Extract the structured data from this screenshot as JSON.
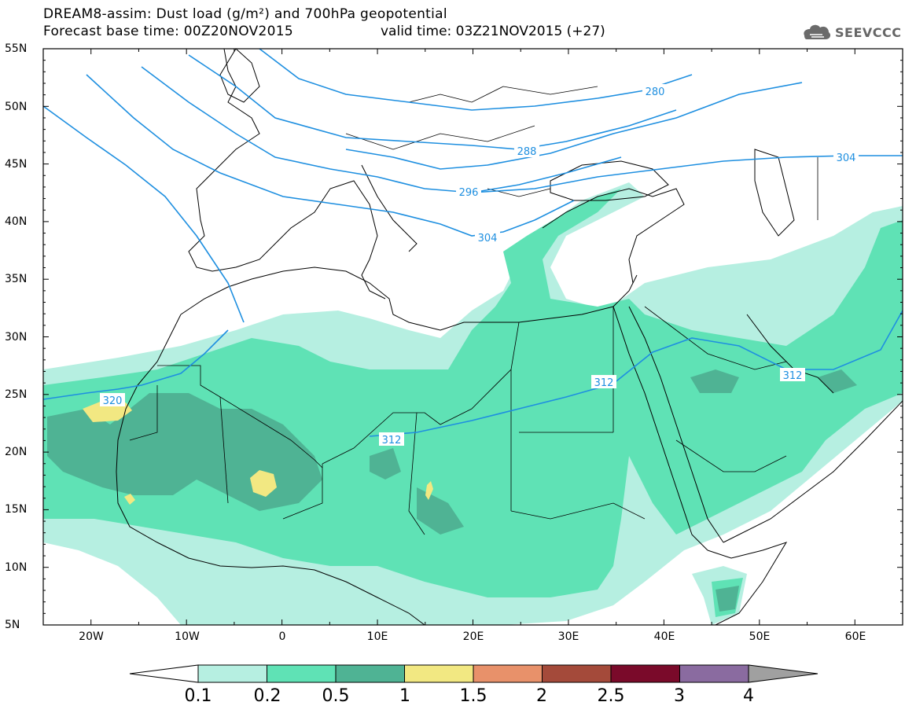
{
  "header": {
    "title_line1": "DREAM8-assim: Dust load (g/m²) and 700hPa geopotential",
    "title_line2": "Forecast base time: 00Z20NOV2015",
    "valid_time": "valid time: 03Z21NOV2015 (+27)"
  },
  "logo": {
    "text": "SEEVCCC",
    "icon": "cloud-icon"
  },
  "map": {
    "lon_range": [
      -25,
      65
    ],
    "lat_range": [
      5,
      55
    ],
    "lat_labels": [
      "55N",
      "50N",
      "45N",
      "40N",
      "35N",
      "30N",
      "25N",
      "20N",
      "15N",
      "10N",
      "5N"
    ],
    "lon_labels": [
      "20W",
      "10W",
      "0",
      "10E",
      "20E",
      "30E",
      "40E",
      "50E",
      "60E"
    ],
    "contour_labels": [
      "280",
      "288",
      "296",
      "304",
      "312",
      "312",
      "312",
      "320",
      "304"
    ],
    "colors": {
      "contour": "#1e8fe0",
      "coast": "#000000"
    }
  },
  "colorbar": {
    "labels": [
      "0.1",
      "0.2",
      "0.5",
      "1",
      "1.5",
      "2",
      "2.5",
      "3",
      "4"
    ],
    "colors": [
      "#ffffff",
      "#b6efe1",
      "#5fe2b5",
      "#4fb394",
      "#f2e882",
      "#e8916a",
      "#a44a3a",
      "#7a0a2a",
      "#8a6ba0",
      "#a0a0a0"
    ]
  }
}
